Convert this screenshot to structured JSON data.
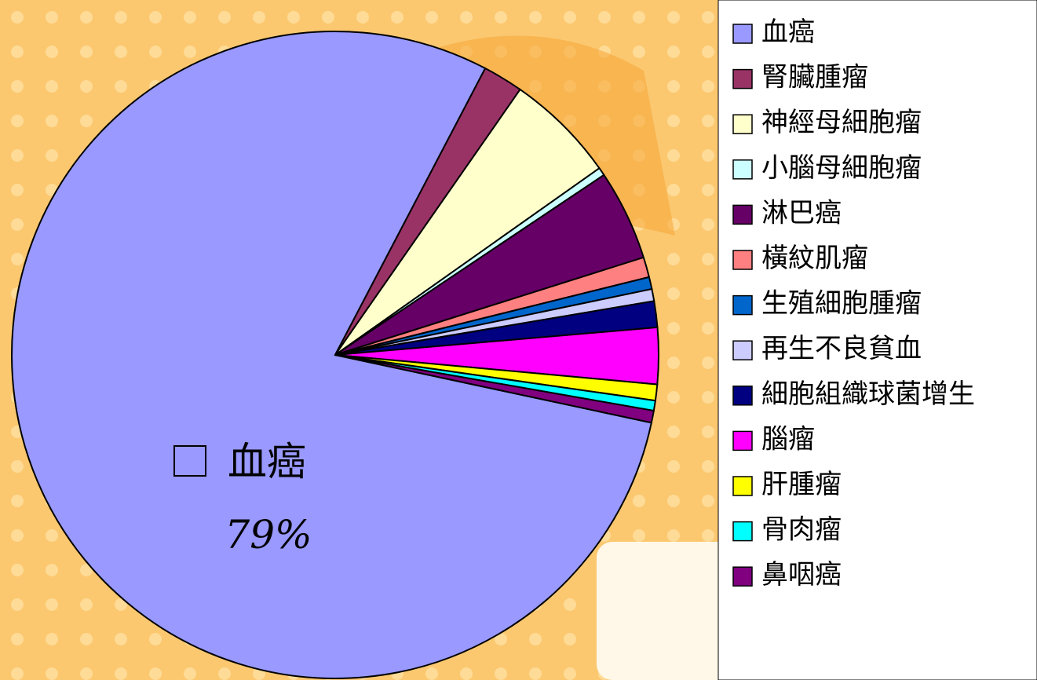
{
  "chart_data": {
    "type": "pie",
    "categories": [
      "血癌",
      "腎臟腫瘤",
      "神經母細胞瘤",
      "小腦母細胞瘤",
      "淋巴癌",
      "橫紋肌瘤",
      "生殖細胞腫瘤",
      "再生不良貧血",
      "細胞組織球菌增生",
      "腦瘤",
      "肝腫瘤",
      "骨肉瘤",
      "鼻咽癌"
    ],
    "values": [
      79,
      2,
      5.5,
      0.4,
      4.5,
      1,
      0.6,
      0.6,
      1.3,
      2.8,
      0.8,
      0.5,
      0.6
    ],
    "value_labels": [
      "79%",
      null,
      null,
      null,
      null,
      null,
      null,
      null,
      null,
      null,
      null,
      null,
      null
    ],
    "colors": [
      "#9999ff",
      "#993366",
      "#ffffcc",
      "#ccffff",
      "#660066",
      "#ff8080",
      "#0066cc",
      "#ccccff",
      "#000080",
      "#ff00ff",
      "#ffff00",
      "#00ffff",
      "#800080"
    ],
    "legend": "right"
  }
}
